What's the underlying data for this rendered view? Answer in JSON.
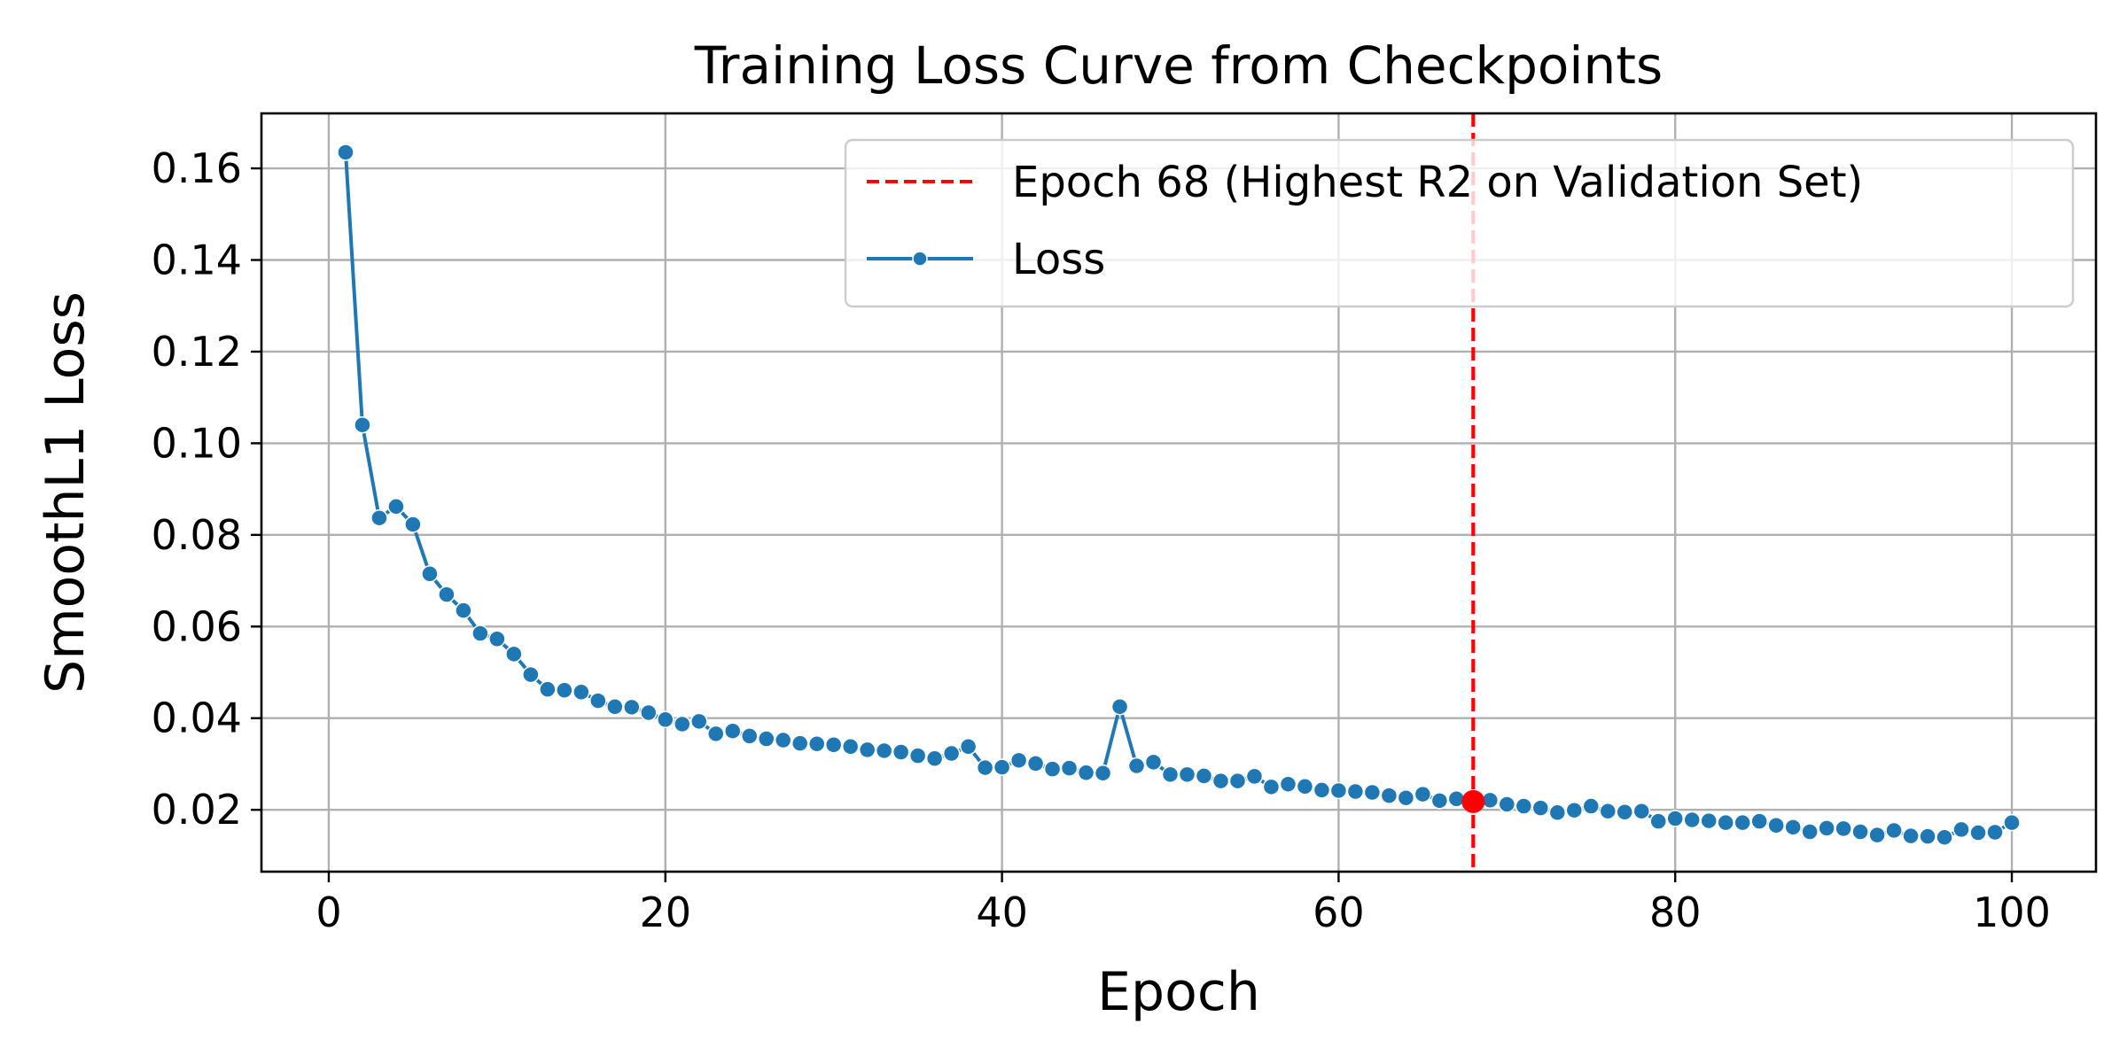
{
  "chart_data": {
    "type": "line",
    "title": "Training Loss Curve from Checkpoints",
    "xlabel": "Epoch",
    "ylabel": "SmoothL1 Loss",
    "xlim": [
      -4,
      105
    ],
    "ylim": [
      0.0065,
      0.172
    ],
    "xticks": [
      0,
      20,
      40,
      60,
      80,
      100
    ],
    "xtick_labels": [
      "0",
      "20",
      "40",
      "60",
      "80",
      "100"
    ],
    "yticks": [
      0.02,
      0.04,
      0.06,
      0.08,
      0.1,
      0.12,
      0.14,
      0.16
    ],
    "ytick_labels": [
      "0.02",
      "0.04",
      "0.06",
      "0.08",
      "0.10",
      "0.12",
      "0.14",
      "0.16"
    ],
    "grid": true,
    "legend_position": "top-right",
    "series": [
      {
        "name": "Loss",
        "color": "#1f77b4",
        "x": [
          1,
          2,
          3,
          4,
          5,
          6,
          7,
          8,
          9,
          10,
          11,
          12,
          13,
          14,
          15,
          16,
          17,
          18,
          19,
          20,
          21,
          22,
          23,
          24,
          25,
          26,
          27,
          28,
          29,
          30,
          31,
          32,
          33,
          34,
          35,
          36,
          37,
          38,
          39,
          40,
          41,
          42,
          43,
          44,
          45,
          46,
          47,
          48,
          49,
          50,
          51,
          52,
          53,
          54,
          55,
          56,
          57,
          58,
          59,
          60,
          61,
          62,
          63,
          64,
          65,
          66,
          67,
          68,
          69,
          70,
          71,
          72,
          73,
          74,
          75,
          76,
          77,
          78,
          79,
          80,
          81,
          82,
          83,
          84,
          85,
          86,
          87,
          88,
          89,
          90,
          91,
          92,
          93,
          94,
          95,
          96,
          97,
          98,
          99,
          100
        ],
        "values": [
          0.1635,
          0.104,
          0.0837,
          0.0862,
          0.0823,
          0.0715,
          0.067,
          0.0635,
          0.0585,
          0.0573,
          0.054,
          0.0495,
          0.0463,
          0.0461,
          0.0457,
          0.0438,
          0.0425,
          0.0424,
          0.0412,
          0.0397,
          0.0387,
          0.0393,
          0.0366,
          0.0372,
          0.0361,
          0.0355,
          0.0352,
          0.0345,
          0.0344,
          0.0342,
          0.0338,
          0.0331,
          0.0329,
          0.0326,
          0.0318,
          0.0312,
          0.0323,
          0.0338,
          0.0292,
          0.0293,
          0.0308,
          0.0301,
          0.0289,
          0.0291,
          0.0281,
          0.028,
          0.0425,
          0.0296,
          0.0304,
          0.0277,
          0.0277,
          0.0274,
          0.0263,
          0.0263,
          0.0273,
          0.025,
          0.0256,
          0.0251,
          0.0243,
          0.0242,
          0.024,
          0.0238,
          0.0231,
          0.0226,
          0.0234,
          0.022,
          0.0224,
          0.0218,
          0.0221,
          0.0212,
          0.0208,
          0.0204,
          0.0194,
          0.0199,
          0.0208,
          0.0197,
          0.0195,
          0.0197,
          0.0175,
          0.0181,
          0.0178,
          0.0176,
          0.0172,
          0.0172,
          0.0175,
          0.0166,
          0.0162,
          0.0152,
          0.016,
          0.0159,
          0.0152,
          0.0145,
          0.0155,
          0.0143,
          0.0142,
          0.014,
          0.0157,
          0.015,
          0.0151,
          0.0172
        ]
      }
    ],
    "reference_line": {
      "label": "Epoch 68 (Highest R2 on Validation Set)",
      "x": 68,
      "y": 0.0218,
      "color": "#ff0000"
    }
  }
}
